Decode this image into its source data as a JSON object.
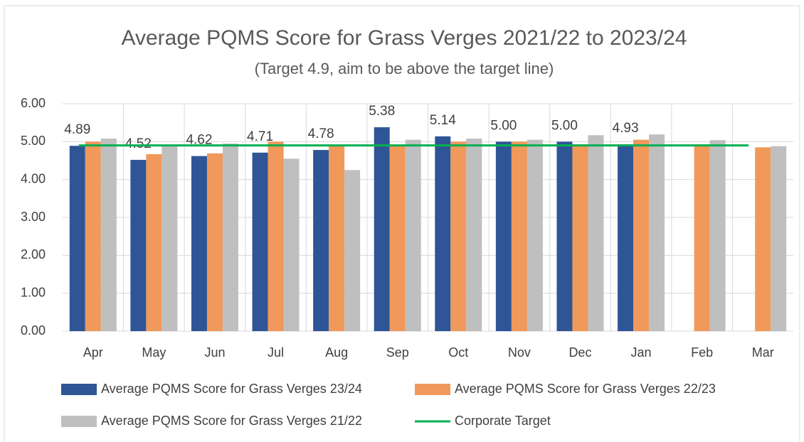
{
  "chart_data": {
    "type": "bar",
    "title": "Average PQMS Score for Grass Verges 2021/22 to 2023/24",
    "subtitle": "(Target 4.9, aim to be above the target line)",
    "categories": [
      "Apr",
      "May",
      "Jun",
      "Jul",
      "Aug",
      "Sep",
      "Oct",
      "Nov",
      "Dec",
      "Jan",
      "Feb",
      "Mar"
    ],
    "series": [
      {
        "name": "Average PQMS Score for Grass Verges 23/24",
        "color": "#2f5597",
        "type": "bar",
        "values": [
          4.89,
          4.52,
          4.62,
          4.71,
          4.78,
          5.38,
          5.14,
          5.0,
          5.0,
          4.93,
          null,
          null
        ],
        "value_labels": [
          "4.89",
          "4.52",
          "4.62",
          "4.71",
          "4.78",
          "5.38",
          "5.14",
          "5.00",
          "5.00",
          "4.93",
          null,
          null
        ]
      },
      {
        "name": "Average PQMS Score for Grass Verges 22/23",
        "color": "#f0995a",
        "type": "bar",
        "values": [
          5.0,
          4.67,
          4.69,
          5.0,
          4.9,
          4.9,
          5.0,
          5.0,
          4.93,
          5.05,
          4.93,
          4.85
        ]
      },
      {
        "name": "Average PQMS Score for Grass Verges 21/22",
        "color": "#bfbfbf",
        "type": "bar",
        "values": [
          5.08,
          4.9,
          4.95,
          4.55,
          4.25,
          5.05,
          5.08,
          5.05,
          5.17,
          5.19,
          5.04,
          4.88
        ]
      },
      {
        "name": "Corporate Target",
        "color": "#00b050",
        "type": "line",
        "values": [
          4.9,
          4.9,
          4.9,
          4.9,
          4.9,
          4.9,
          4.9,
          4.9,
          4.9,
          4.9,
          4.9,
          4.9
        ]
      }
    ],
    "ylim": [
      0,
      6
    ],
    "yticks": [
      {
        "value": 0,
        "label": "0.00"
      },
      {
        "value": 1,
        "label": "1.00"
      },
      {
        "value": 2,
        "label": "2.00"
      },
      {
        "value": 3,
        "label": "3.00"
      },
      {
        "value": 4,
        "label": "4.00"
      },
      {
        "value": 5,
        "label": "5.00"
      },
      {
        "value": 6,
        "label": "6.00"
      }
    ],
    "grid": true
  }
}
